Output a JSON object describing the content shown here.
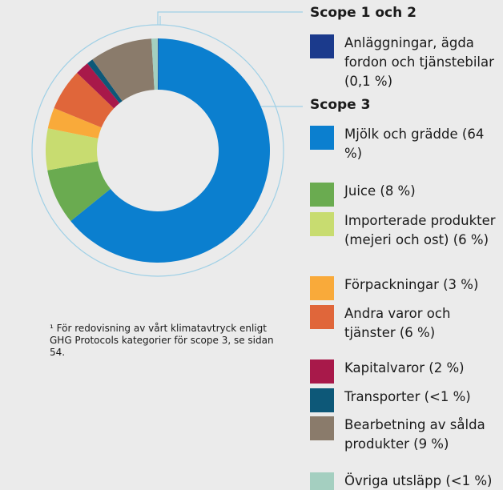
{
  "chart_data": {
    "type": "donut",
    "groups": [
      {
        "title": "Scope 1 och 2",
        "categories": [
          "Anläggningar, ägda fordon och tjänste­bilar (0,1 %)"
        ],
        "values": [
          0.1
        ],
        "colors": [
          "#1b3a8c"
        ]
      },
      {
        "title": "Scope 3",
        "categories": [
          "Mjölk och grädde (64 %)",
          "Juice (8 %)",
          "Importerade produkter (mejeri och ost) (6 %)",
          "Förpackningar (3 %)",
          "Andra varor och tjänster (6 %)",
          "Kapitalvaror (2 %)",
          "Transporter (<1 %)",
          "Bearbetning av sålda produkter (9 %)",
          "Övriga utsläpp (<1 %)"
        ],
        "values": [
          64,
          8,
          6,
          3,
          6,
          2,
          0.9,
          9,
          0.9
        ],
        "colors": [
          "#0b7fcf",
          "#6aab50",
          "#c8dc70",
          "#f9aa3a",
          "#e0663a",
          "#a8194a",
          "#0d5878",
          "#8a7b6b",
          "#a4cfc0"
        ]
      }
    ],
    "footnote": "¹ För redovisning av vårt klimatavtryck enligt GHG Protocols kategorier för scope 3, se sidan 54."
  }
}
